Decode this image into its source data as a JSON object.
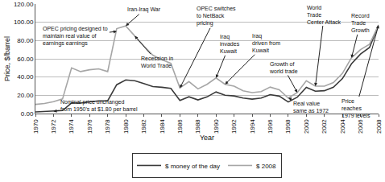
{
  "chart_data": {
    "type": "line",
    "x_label": "Year",
    "y_label": "Price, $/barrel",
    "x": [
      1970,
      1971,
      1972,
      1973,
      1974,
      1975,
      1976,
      1977,
      1978,
      1979,
      1980,
      1981,
      1982,
      1983,
      1984,
      1985,
      1986,
      1987,
      1988,
      1989,
      1990,
      1991,
      1992,
      1993,
      1994,
      1995,
      1996,
      1997,
      1998,
      1999,
      2000,
      2001,
      2002,
      2003,
      2004,
      2005,
      2006,
      2007,
      2008
    ],
    "series": [
      {
        "name": "$ money of the day",
        "color": "#3a3a3a",
        "values": [
          1.8,
          2.2,
          2.5,
          3.3,
          11.6,
          11.5,
          12.8,
          13.9,
          14.0,
          31.6,
          36.8,
          35.9,
          32.9,
          29.6,
          28.8,
          27.6,
          14.4,
          18.4,
          14.9,
          18.2,
          23.7,
          20.0,
          19.3,
          17.0,
          15.8,
          17.0,
          20.7,
          19.1,
          12.7,
          17.9,
          28.7,
          24.5,
          25.0,
          28.8,
          38.3,
          54.5,
          65.1,
          72.4,
          97.0
        ]
      },
      {
        "name": "$ 2008",
        "color": "#a6a6a6",
        "values": [
          10,
          11,
          13,
          16,
          50,
          46,
          48,
          49,
          46,
          93,
          96,
          85,
          74,
          64,
          59,
          55,
          28,
          35,
          27,
          32,
          39,
          32,
          30,
          25,
          23,
          24,
          29,
          26,
          17,
          23,
          36,
          30,
          30,
          34,
          44,
          61,
          70,
          76,
          97
        ]
      }
    ],
    "xlim": [
      1970,
      2008
    ],
    "xticks": [
      1970,
      1972,
      1974,
      1976,
      1978,
      1980,
      1982,
      1984,
      1986,
      1988,
      1990,
      1992,
      1994,
      1996,
      1998,
      2000,
      2002,
      2004,
      2006,
      2008
    ],
    "ylim": [
      0,
      120
    ],
    "yticks": [
      {
        "value": 0,
        "label": "0.00"
      },
      {
        "value": 20,
        "label": "20.00"
      },
      {
        "value": 40,
        "label": "40.00"
      },
      {
        "value": 60,
        "label": "60.00"
      },
      {
        "value": 80,
        "label": "80.00"
      },
      {
        "value": 100,
        "label": "100.00"
      },
      {
        "value": 120,
        "label": "120.00"
      }
    ],
    "grid": true,
    "legend": "bottom",
    "annotations": [
      {
        "text": "Nominal price unchanged\nfrom 1950's at $1.80 per barrel",
        "x": 1972,
        "y": 2.5
      },
      {
        "text": "OPEC pricing designed to\nmaintain real value of\nearnings earnings",
        "x": 1979,
        "y": 90
      },
      {
        "text": "Iran-Iraq War",
        "x": 1980,
        "y": 96
      },
      {
        "text": "Recession in\nWorld Trade",
        "x": 1981,
        "y": 85
      },
      {
        "text": "OPEC switches\nto NetBack\npricing",
        "x": 1986,
        "y": 28
      },
      {
        "text": "Iraq\ninvades\nKuwait",
        "x": 1990,
        "y": 39
      },
      {
        "text": "Iraq\ndriven from\nKuwait",
        "x": 1991,
        "y": 32
      },
      {
        "text": "Growth of\nworld trade",
        "x": 1999,
        "y": 23
      },
      {
        "text": "World\nTrade\nCenter Attack",
        "x": 2001,
        "y": 30
      },
      {
        "text": "Record\nTrade\nGrowth",
        "x": 2005,
        "y": 61
      },
      {
        "text": "Price\nreaches\n1979 levels",
        "x": 2008,
        "y": 97
      },
      {
        "text": "Real value\nsame as 1972",
        "x": 1998,
        "y": 17
      }
    ]
  }
}
